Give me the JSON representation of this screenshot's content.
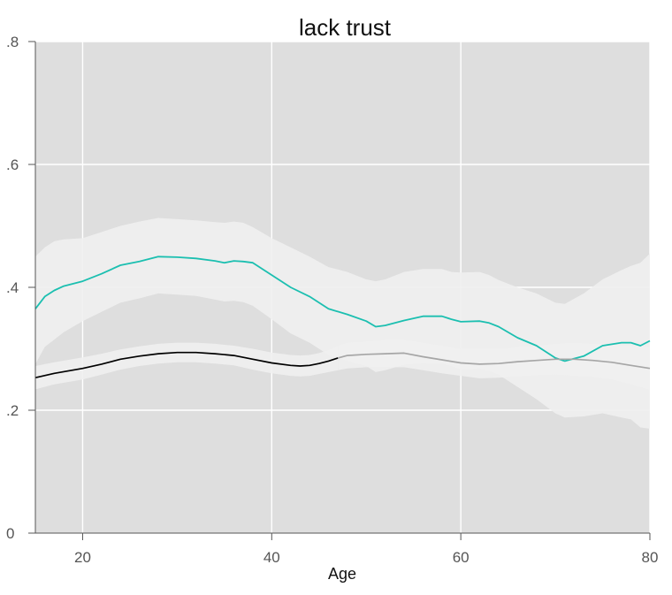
{
  "chart_data": {
    "type": "line",
    "title": "lack trust",
    "xlabel": "Age",
    "ylabel": "",
    "xlim": [
      15,
      80
    ],
    "ylim": [
      0,
      0.8
    ],
    "x_ticks": [
      20,
      40,
      60,
      80
    ],
    "x_tick_labels": [
      "20",
      "40",
      "60",
      "80"
    ],
    "y_ticks": [
      0,
      0.2,
      0.4,
      0.6,
      0.8
    ],
    "y_tick_labels": [
      "0",
      ".2",
      ".4",
      ".6",
      ".8"
    ],
    "grid": true,
    "colors": {
      "panel_background": "#dedede",
      "gridline": "#ffffff",
      "band": "#f0f0f0",
      "teal_line": "#1bbfb0",
      "black_line": "#000000",
      "gray_line": "#a6a6a6",
      "axis": "#555555"
    },
    "series": [
      {
        "color": "#1bbfb0",
        "x": [
          15,
          16,
          17,
          18,
          20,
          22,
          24,
          26,
          28,
          30,
          32,
          34,
          35,
          36,
          37,
          38,
          40,
          42,
          44,
          46,
          48,
          50,
          51,
          52,
          54,
          56,
          58,
          59,
          60,
          62,
          63,
          64,
          66,
          68,
          70,
          71,
          73,
          75,
          77,
          78,
          79,
          80
        ],
        "y": [
          0.365,
          0.385,
          0.395,
          0.402,
          0.41,
          0.422,
          0.436,
          0.442,
          0.45,
          0.449,
          0.447,
          0.443,
          0.44,
          0.443,
          0.442,
          0.44,
          0.42,
          0.4,
          0.385,
          0.365,
          0.356,
          0.345,
          0.336,
          0.338,
          0.346,
          0.353,
          0.353,
          0.348,
          0.344,
          0.345,
          0.342,
          0.336,
          0.318,
          0.305,
          0.285,
          0.28,
          0.288,
          0.305,
          0.31,
          0.31,
          0.305,
          0.313
        ],
        "band_upper": [
          0.45,
          0.465,
          0.475,
          0.478,
          0.48,
          0.49,
          0.5,
          0.507,
          0.513,
          0.511,
          0.509,
          0.506,
          0.505,
          0.507,
          0.505,
          0.498,
          0.48,
          0.465,
          0.45,
          0.433,
          0.425,
          0.413,
          0.41,
          0.413,
          0.425,
          0.43,
          0.43,
          0.425,
          0.424,
          0.425,
          0.42,
          0.412,
          0.4,
          0.39,
          0.375,
          0.373,
          0.39,
          0.413,
          0.428,
          0.435,
          0.44,
          0.455
        ],
        "band_lower": [
          0.275,
          0.303,
          0.315,
          0.327,
          0.345,
          0.36,
          0.375,
          0.382,
          0.39,
          0.388,
          0.386,
          0.38,
          0.377,
          0.378,
          0.376,
          0.37,
          0.348,
          0.325,
          0.31,
          0.29,
          0.28,
          0.272,
          0.262,
          0.265,
          0.274,
          0.277,
          0.276,
          0.272,
          0.266,
          0.267,
          0.264,
          0.258,
          0.238,
          0.218,
          0.195,
          0.188,
          0.19,
          0.195,
          0.188,
          0.185,
          0.172,
          0.17
        ]
      },
      {
        "color": "#000000",
        "x": [
          15,
          17,
          20,
          22,
          24,
          26,
          28,
          30,
          32,
          34,
          36,
          38,
          40,
          42,
          43,
          44,
          45,
          46,
          47
        ],
        "y": [
          0.253,
          0.26,
          0.268,
          0.275,
          0.283,
          0.288,
          0.292,
          0.294,
          0.294,
          0.292,
          0.289,
          0.283,
          0.277,
          0.273,
          0.272,
          0.273,
          0.276,
          0.28,
          0.285
        ]
      },
      {
        "color": "#a6a6a6",
        "x": [
          47,
          48,
          50,
          52,
          54,
          56,
          58,
          60,
          62,
          64,
          66,
          68,
          70,
          72,
          74,
          76,
          78,
          80
        ],
        "y": [
          0.285,
          0.289,
          0.291,
          0.292,
          0.293,
          0.287,
          0.282,
          0.277,
          0.275,
          0.276,
          0.279,
          0.281,
          0.283,
          0.283,
          0.281,
          0.278,
          0.273,
          0.268
        ],
        "band_upper": [
          0.305,
          0.31,
          0.312,
          0.315,
          0.315,
          0.31,
          0.305,
          0.3,
          0.3,
          0.3,
          0.303,
          0.305,
          0.308,
          0.31,
          0.308,
          0.307,
          0.305,
          0.303
        ],
        "band_lower": [
          0.265,
          0.268,
          0.27,
          0.27,
          0.27,
          0.265,
          0.26,
          0.256,
          0.252,
          0.253,
          0.255,
          0.257,
          0.258,
          0.256,
          0.254,
          0.25,
          0.242,
          0.233
        ]
      }
    ],
    "black_band": {
      "x": [
        15,
        17,
        20,
        22,
        24,
        26,
        28,
        30,
        32,
        34,
        36,
        38,
        40,
        42,
        43,
        44,
        45,
        46,
        47
      ],
      "band_upper": [
        0.272,
        0.278,
        0.286,
        0.292,
        0.299,
        0.304,
        0.308,
        0.31,
        0.31,
        0.308,
        0.305,
        0.3,
        0.294,
        0.29,
        0.289,
        0.29,
        0.293,
        0.298,
        0.305
      ],
      "band_lower": [
        0.234,
        0.242,
        0.25,
        0.258,
        0.266,
        0.272,
        0.276,
        0.278,
        0.278,
        0.276,
        0.273,
        0.266,
        0.26,
        0.256,
        0.255,
        0.256,
        0.259,
        0.262,
        0.265
      ]
    }
  }
}
